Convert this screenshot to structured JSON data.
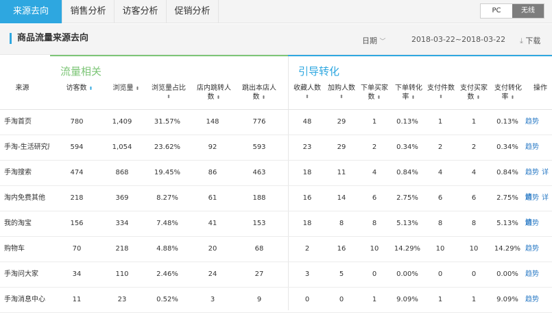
{
  "tabs": [
    {
      "label": "来源去向",
      "active": true
    },
    {
      "label": "销售分析",
      "active": false
    },
    {
      "label": "访客分析",
      "active": false
    },
    {
      "label": "促销分析",
      "active": false
    }
  ],
  "device_toggle": {
    "pc": "PC",
    "wireless": "无线",
    "selected": "无线"
  },
  "section": {
    "title": "商品流量来源去向",
    "date_label": "日期",
    "date_range": "2018-03-22~2018-03-22",
    "download": "下载"
  },
  "groups": {
    "traffic": {
      "label": "流量相关",
      "color": "#7cc576"
    },
    "conversion": {
      "label": "引导转化",
      "color": "#2ea7e0"
    }
  },
  "columns": {
    "source": "来源",
    "visitors": "访客数",
    "views": "浏览量",
    "view_share": "浏览量占比",
    "in_store_jump_1": "店内跳转人",
    "in_store_jump_2": "数",
    "exit_1": "跳出本店人",
    "exit_2": "数",
    "favorites": "收藏人数",
    "cart": "加购人数",
    "buyers_1": "下单买家",
    "buyers_2": "数",
    "order_conv_1": "下单转化",
    "order_conv_2": "率",
    "paid_items": "支付件数",
    "paid_buyers_1": "支付买家",
    "paid_buyers_2": "数",
    "pay_conv_1": "支付转化",
    "pay_conv_2": "率",
    "action": "操作"
  },
  "rows": [
    {
      "source": "手淘首页",
      "visitors": "780",
      "views": "1,409",
      "share": "31.57%",
      "jump": "148",
      "exit": "776",
      "fav": "48",
      "cart": "29",
      "buyers": "1",
      "order_conv": "0.13%",
      "paid_items": "1",
      "paid_buyers": "1",
      "pay_conv": "0.13%",
      "trend": "趋势",
      "detail": ""
    },
    {
      "source": "手淘-生活研究所",
      "visitors": "594",
      "views": "1,054",
      "share": "23.62%",
      "jump": "92",
      "exit": "593",
      "fav": "23",
      "cart": "29",
      "buyers": "2",
      "order_conv": "0.34%",
      "paid_items": "2",
      "paid_buyers": "2",
      "pay_conv": "0.34%",
      "trend": "趋势",
      "detail": ""
    },
    {
      "source": "手淘搜索",
      "visitors": "474",
      "views": "868",
      "share": "19.45%",
      "jump": "86",
      "exit": "463",
      "fav": "18",
      "cart": "11",
      "buyers": "4",
      "order_conv": "0.84%",
      "paid_items": "4",
      "paid_buyers": "4",
      "pay_conv": "0.84%",
      "trend": "趋势",
      "detail": "详情"
    },
    {
      "source": "淘内免费其他",
      "visitors": "218",
      "views": "369",
      "share": "8.27%",
      "jump": "61",
      "exit": "188",
      "fav": "16",
      "cart": "14",
      "buyers": "6",
      "order_conv": "2.75%",
      "paid_items": "6",
      "paid_buyers": "6",
      "pay_conv": "2.75%",
      "trend": "趋势",
      "detail": "详情"
    },
    {
      "source": "我的淘宝",
      "visitors": "156",
      "views": "334",
      "share": "7.48%",
      "jump": "41",
      "exit": "153",
      "fav": "18",
      "cart": "8",
      "buyers": "8",
      "order_conv": "5.13%",
      "paid_items": "8",
      "paid_buyers": "8",
      "pay_conv": "5.13%",
      "trend": "趋势",
      "detail": ""
    },
    {
      "source": "购物车",
      "visitors": "70",
      "views": "218",
      "share": "4.88%",
      "jump": "20",
      "exit": "68",
      "fav": "2",
      "cart": "16",
      "buyers": "10",
      "order_conv": "14.29%",
      "paid_items": "10",
      "paid_buyers": "10",
      "pay_conv": "14.29%",
      "trend": "趋势",
      "detail": ""
    },
    {
      "source": "手淘问大家",
      "visitors": "34",
      "views": "110",
      "share": "2.46%",
      "jump": "24",
      "exit": "27",
      "fav": "3",
      "cart": "5",
      "buyers": "0",
      "order_conv": "0.00%",
      "paid_items": "0",
      "paid_buyers": "0",
      "pay_conv": "0.00%",
      "trend": "趋势",
      "detail": ""
    },
    {
      "source": "手淘消息中心",
      "visitors": "11",
      "views": "23",
      "share": "0.52%",
      "jump": "3",
      "exit": "9",
      "fav": "0",
      "cart": "0",
      "buyers": "1",
      "order_conv": "9.09%",
      "paid_items": "1",
      "paid_buyers": "1",
      "pay_conv": "9.09%",
      "trend": "趋势",
      "detail": ""
    }
  ]
}
